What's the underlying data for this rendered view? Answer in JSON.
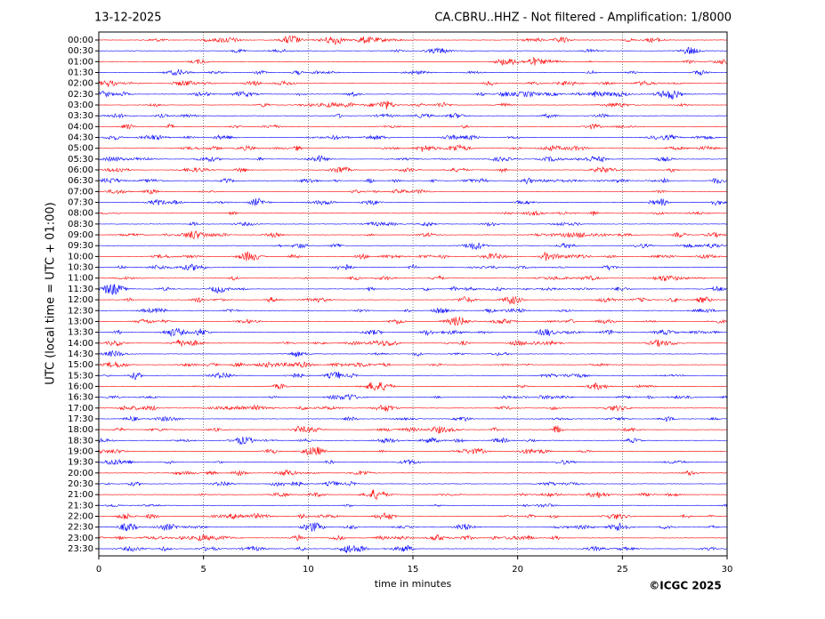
{
  "chart_data": {
    "type": "helicorder",
    "date": "13-12-2025",
    "title": "CA.CBRU..HHZ - Not filtered - Amplification: 1/8000",
    "ylabel": "UTC (local time = UTC + 01:00)",
    "xlabel": "time in minutes",
    "copyright": "©ICGC 2025",
    "categories": [
      "00:00",
      "00:30",
      "01:00",
      "01:30",
      "02:00",
      "02:30",
      "03:00",
      "03:30",
      "04:00",
      "04:30",
      "05:00",
      "05:30",
      "06:00",
      "06:30",
      "07:00",
      "07:30",
      "08:00",
      "08:30",
      "09:00",
      "09:30",
      "10:00",
      "10:30",
      "11:00",
      "11:30",
      "12:00",
      "12:30",
      "13:00",
      "13:30",
      "14:00",
      "14:30",
      "15:00",
      "15:30",
      "16:00",
      "16:30",
      "17:00",
      "17:30",
      "18:00",
      "18:30",
      "19:00",
      "19:30",
      "20:00",
      "20:30",
      "21:00",
      "21:30",
      "22:00",
      "22:30",
      "23:00",
      "23:30"
    ],
    "colors": [
      "#ff0000",
      "#0000ff"
    ],
    "xlim": [
      0,
      30
    ],
    "xticks": [
      0,
      5,
      10,
      15,
      20,
      25,
      30
    ],
    "grid": true
  }
}
